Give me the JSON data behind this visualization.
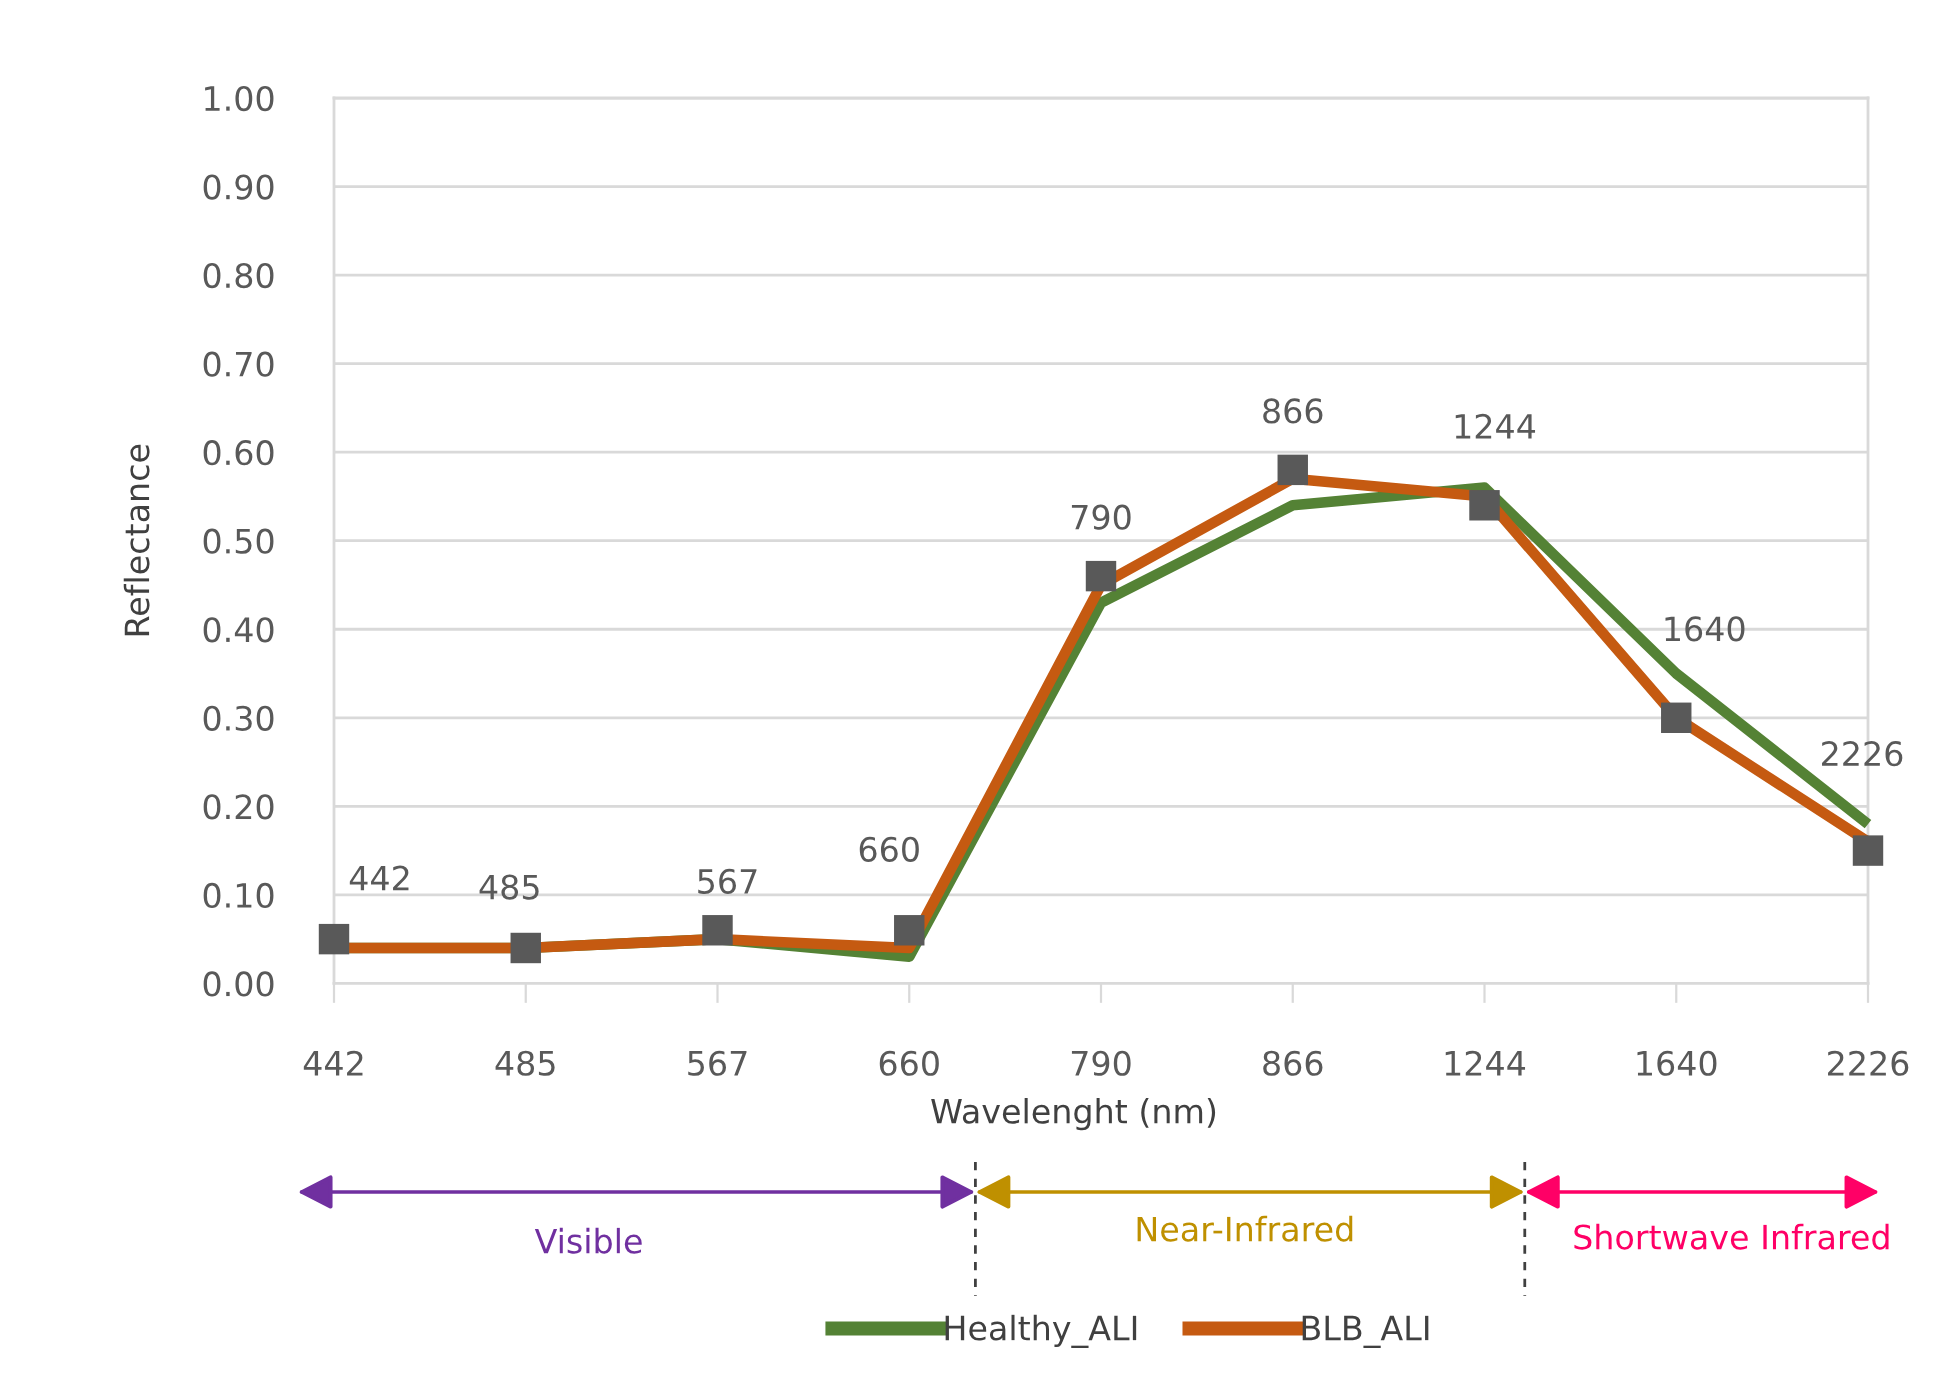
{
  "chart_data": {
    "type": "line",
    "xlabel": "Wavelenght (nm)",
    "ylabel": "Reflectance",
    "categories": [
      "442",
      "485",
      "567",
      "660",
      "790",
      "866",
      "1244",
      "1640",
      "2226"
    ],
    "series": [
      {
        "name": "Healthy_ALI",
        "color": "#548235",
        "values": [
          0.04,
          0.04,
          0.05,
          0.03,
          0.43,
          0.54,
          0.56,
          0.35,
          0.18
        ]
      },
      {
        "name": "BLB_ALI",
        "color": "#c55a11",
        "values": [
          0.04,
          0.04,
          0.05,
          0.04,
          0.45,
          0.57,
          0.55,
          0.3,
          0.16
        ]
      },
      {
        "type": "scatter",
        "marker": "square",
        "color": "#595959",
        "values": [
          0.05,
          0.04,
          0.06,
          0.06,
          0.46,
          0.58,
          0.54,
          0.3,
          0.15
        ]
      }
    ],
    "ylim": [
      0,
      1
    ],
    "yticks": [
      {
        "value": 0,
        "label": "0.00"
      },
      {
        "value": 0.1,
        "label": "0.10"
      },
      {
        "value": 0.2,
        "label": "0.20"
      },
      {
        "value": 0.3,
        "label": "0.30"
      },
      {
        "value": 0.4,
        "label": "0.40"
      },
      {
        "value": 0.5,
        "label": "0.50"
      },
      {
        "value": 0.6,
        "label": "0.60"
      },
      {
        "value": 0.7,
        "label": "0.70"
      },
      {
        "value": 0.8,
        "label": "0.80"
      },
      {
        "value": 0.9,
        "label": "0.90"
      },
      {
        "value": 1,
        "label": "1.00"
      }
    ],
    "grid": "y",
    "legend": "bottom",
    "annotations": [
      "Visible",
      "Near-Infrared",
      "Shortwave Infrared",
      {
        "text": "442",
        "x": "442",
        "y": 0.05
      },
      {
        "text": "485",
        "x": "485",
        "y": 0.04
      },
      {
        "text": "567",
        "x": "567",
        "y": 0.06
      },
      {
        "text": "660",
        "x": "660",
        "y": 0.06
      },
      {
        "text": "790",
        "x": "790",
        "y": 0.46
      },
      {
        "text": "866",
        "x": "866",
        "y": 0.58
      },
      {
        "text": "1244",
        "x": "1244",
        "y": 0.54
      },
      {
        "text": "1640",
        "x": "1640",
        "y": 0.3
      },
      {
        "text": "2226",
        "x": "2226",
        "y": 0.15
      }
    ]
  }
}
